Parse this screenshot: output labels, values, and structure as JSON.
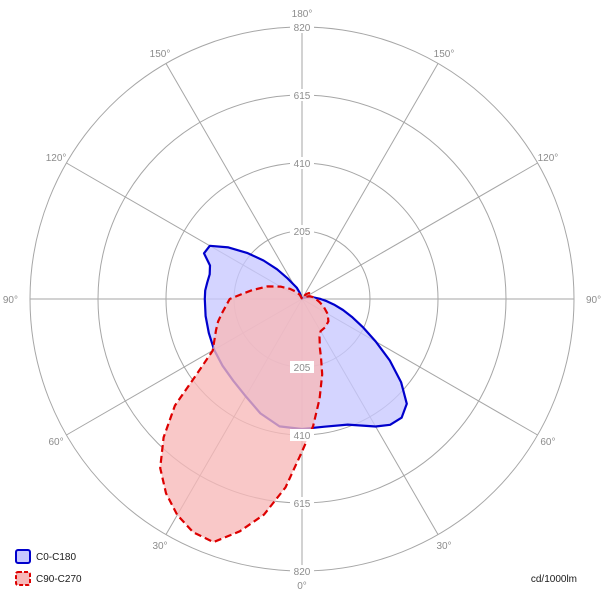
{
  "chart_data": {
    "type": "polar",
    "radial_ticks": [
      205,
      410,
      615,
      820
    ],
    "rmax": 820,
    "angle_labels": [
      {
        "angle": 0,
        "left": "0°",
        "right": ""
      },
      {
        "angle": 30,
        "left": "30°",
        "right": "30°"
      },
      {
        "angle": 60,
        "left": "60°",
        "right": "60°"
      },
      {
        "angle": 90,
        "left": "90°",
        "right": "90°"
      },
      {
        "angle": 120,
        "left": "120°",
        "right": "120°"
      },
      {
        "angle": 150,
        "left": "150°",
        "right": "150°"
      },
      {
        "angle": 180,
        "left": "180°",
        "right": ""
      }
    ],
    "unit_label": "cd/1000lm",
    "series": [
      {
        "name": "C0-C180",
        "stroke": "#0000cc",
        "fill": "#c8c8ff",
        "dashed": false,
        "points": [
          [
            -165,
            0
          ],
          [
            -160,
            21
          ],
          [
            -155,
            38
          ],
          [
            -150,
            50
          ],
          [
            -145,
            76
          ],
          [
            -140,
            117
          ],
          [
            -135,
            164
          ],
          [
            -130,
            216
          ],
          [
            -125,
            271
          ],
          [
            -120,
            321
          ],
          [
            -115,
            326
          ],
          [
            -110,
            295
          ],
          [
            -105,
            288
          ],
          [
            -100,
            290
          ],
          [
            -95,
            293
          ],
          [
            -90,
            293
          ],
          [
            -80,
            295
          ],
          [
            -70,
            299
          ],
          [
            -60,
            306
          ],
          [
            -50,
            313
          ],
          [
            -40,
            322
          ],
          [
            -30,
            339
          ],
          [
            -20,
            367
          ],
          [
            -10,
            390
          ],
          [
            0,
            392
          ],
          [
            10,
            391
          ],
          [
            20,
            403
          ],
          [
            30,
            444
          ],
          [
            35,
            463
          ],
          [
            40,
            467
          ],
          [
            45,
            447
          ],
          [
            50,
            390
          ],
          [
            55,
            323
          ],
          [
            60,
            257
          ],
          [
            65,
            204
          ],
          [
            70,
            162
          ],
          [
            75,
            128
          ],
          [
            80,
            98
          ],
          [
            85,
            75
          ],
          [
            90,
            56
          ],
          [
            100,
            32
          ],
          [
            110,
            16
          ],
          [
            125,
            6
          ],
          [
            145,
            3
          ],
          [
            165,
            0
          ]
        ]
      },
      {
        "name": "C90-C270",
        "stroke": "#dd0000",
        "fill": "#f7b8b8",
        "dashed": true,
        "points": [
          [
            -162,
            0
          ],
          [
            -155,
            9
          ],
          [
            -150,
            16
          ],
          [
            -140,
            29
          ],
          [
            -130,
            48
          ],
          [
            -120,
            75
          ],
          [
            -110,
            111
          ],
          [
            -100,
            153
          ],
          [
            -95,
            180
          ],
          [
            -90,
            218
          ],
          [
            -80,
            245
          ],
          [
            -75,
            262
          ],
          [
            -70,
            276
          ],
          [
            -60,
            311
          ],
          [
            -55,
            380
          ],
          [
            -50,
            500
          ],
          [
            -45,
            590
          ],
          [
            -40,
            665
          ],
          [
            -35,
            715
          ],
          [
            -30,
            752
          ],
          [
            -25,
            776
          ],
          [
            -20,
            780
          ],
          [
            -15,
            725
          ],
          [
            -10,
            660
          ],
          [
            -5,
            570
          ],
          [
            0,
            460
          ],
          [
            5,
            385
          ],
          [
            10,
            305
          ],
          [
            15,
            235
          ],
          [
            18,
            185
          ],
          [
            20,
            158
          ],
          [
            25,
            125
          ],
          [
            30,
            112
          ],
          [
            40,
            110
          ],
          [
            50,
            104
          ],
          [
            60,
            89
          ],
          [
            70,
            70
          ],
          [
            80,
            54
          ],
          [
            90,
            42
          ],
          [
            100,
            33
          ],
          [
            110,
            25
          ],
          [
            120,
            14
          ],
          [
            130,
            28
          ],
          [
            135,
            23
          ],
          [
            140,
            18
          ],
          [
            150,
            9
          ],
          [
            160,
            3
          ],
          [
            162,
            0
          ]
        ]
      }
    ]
  }
}
